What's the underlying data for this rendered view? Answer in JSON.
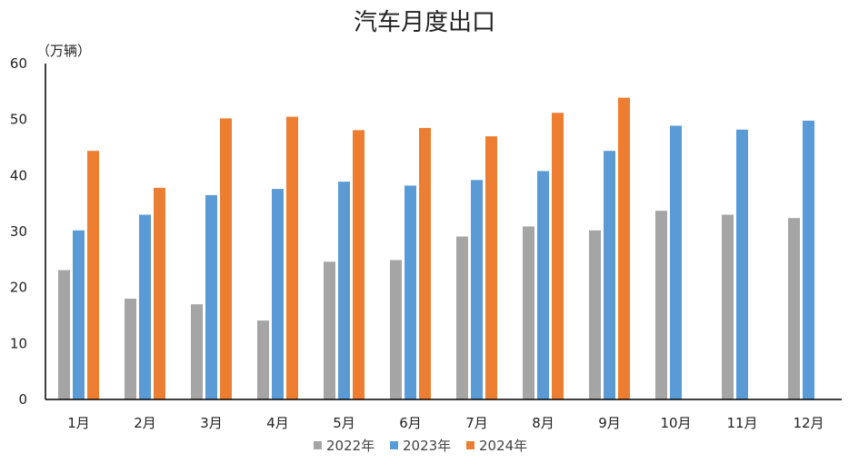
{
  "chart_data": {
    "type": "bar",
    "title": "汽车月度出口",
    "unit_label": "（万辆）",
    "categories": [
      "1月",
      "2月",
      "3月",
      "4月",
      "5月",
      "6月",
      "7月",
      "8月",
      "9月",
      "10月",
      "11月",
      "12月"
    ],
    "ylim": [
      0,
      60
    ],
    "yticks": [
      "0",
      "10",
      "20",
      "30",
      "40",
      "50",
      "60"
    ],
    "grid": false,
    "legend_position": "bottom",
    "series": [
      {
        "name": "2022年",
        "color": "#A5A5A5",
        "values": [
          23.1,
          18.0,
          17.0,
          14.1,
          24.6,
          24.9,
          29.1,
          30.9,
          30.2,
          33.7,
          33.0,
          32.4
        ]
      },
      {
        "name": "2023年",
        "color": "#5B9BD5",
        "values": [
          30.2,
          33.0,
          36.5,
          37.6,
          38.9,
          38.2,
          39.2,
          40.8,
          44.4,
          48.9,
          48.2,
          49.8
        ]
      },
      {
        "name": "2024年",
        "color": "#ED7D31",
        "values": [
          44.4,
          37.8,
          50.2,
          50.5,
          48.1,
          48.5,
          47.0,
          51.2,
          53.9,
          null,
          null,
          null
        ]
      }
    ]
  }
}
